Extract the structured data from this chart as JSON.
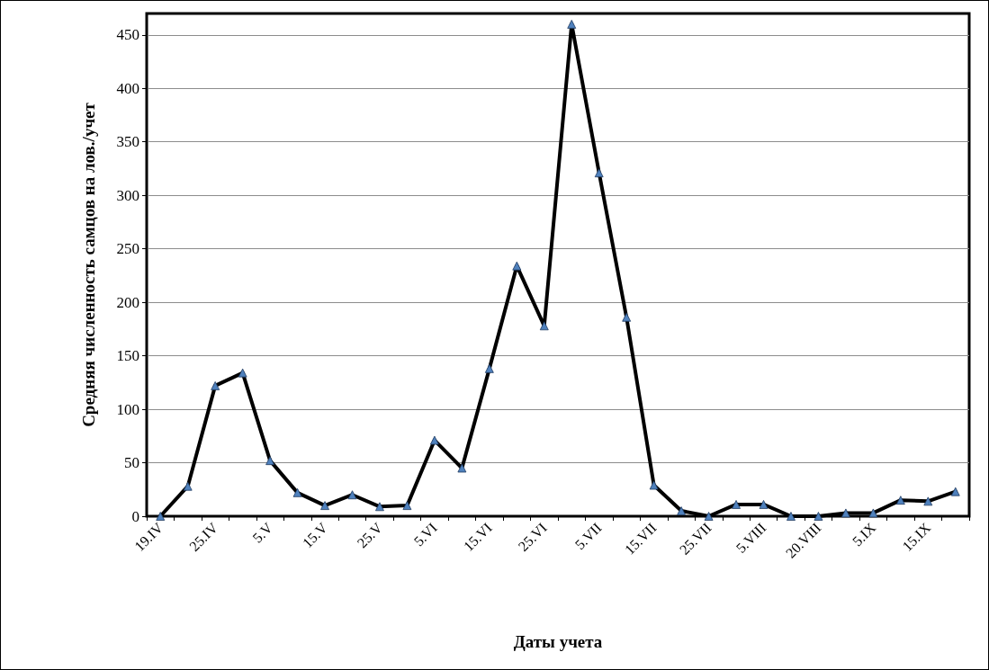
{
  "chart_data": {
    "type": "line",
    "xlabel": "Даты учета",
    "ylabel": "Средняя численность самцов на лов./учет",
    "categories": [
      "19.IV",
      null,
      "25.IV",
      null,
      "5.V",
      null,
      "15.V",
      null,
      "25.V",
      null,
      "5.VI",
      null,
      "15.VI",
      null,
      "25.VI",
      null,
      "5.VII",
      null,
      "15.VII",
      null,
      "25.VII",
      null,
      "5.VIII",
      null,
      "20.VIII",
      null,
      "5.IX",
      null,
      "15.IX",
      null
    ],
    "series": [
      {
        "color": "#000000",
        "values": [
          0,
          28,
          122,
          134,
          52,
          22,
          10,
          20,
          9,
          10,
          71,
          45,
          138,
          234,
          178,
          460,
          321,
          186,
          29,
          5,
          0,
          11,
          11,
          0,
          0,
          3,
          3,
          15,
          14,
          23
        ]
      }
    ],
    "ylim": [
      0,
      470
    ],
    "yticks": [
      0,
      50,
      100,
      150,
      200,
      250,
      300,
      350,
      400,
      450
    ],
    "grid": "y",
    "marker": "triangle",
    "line_style": "solid",
    "legend": false
  }
}
